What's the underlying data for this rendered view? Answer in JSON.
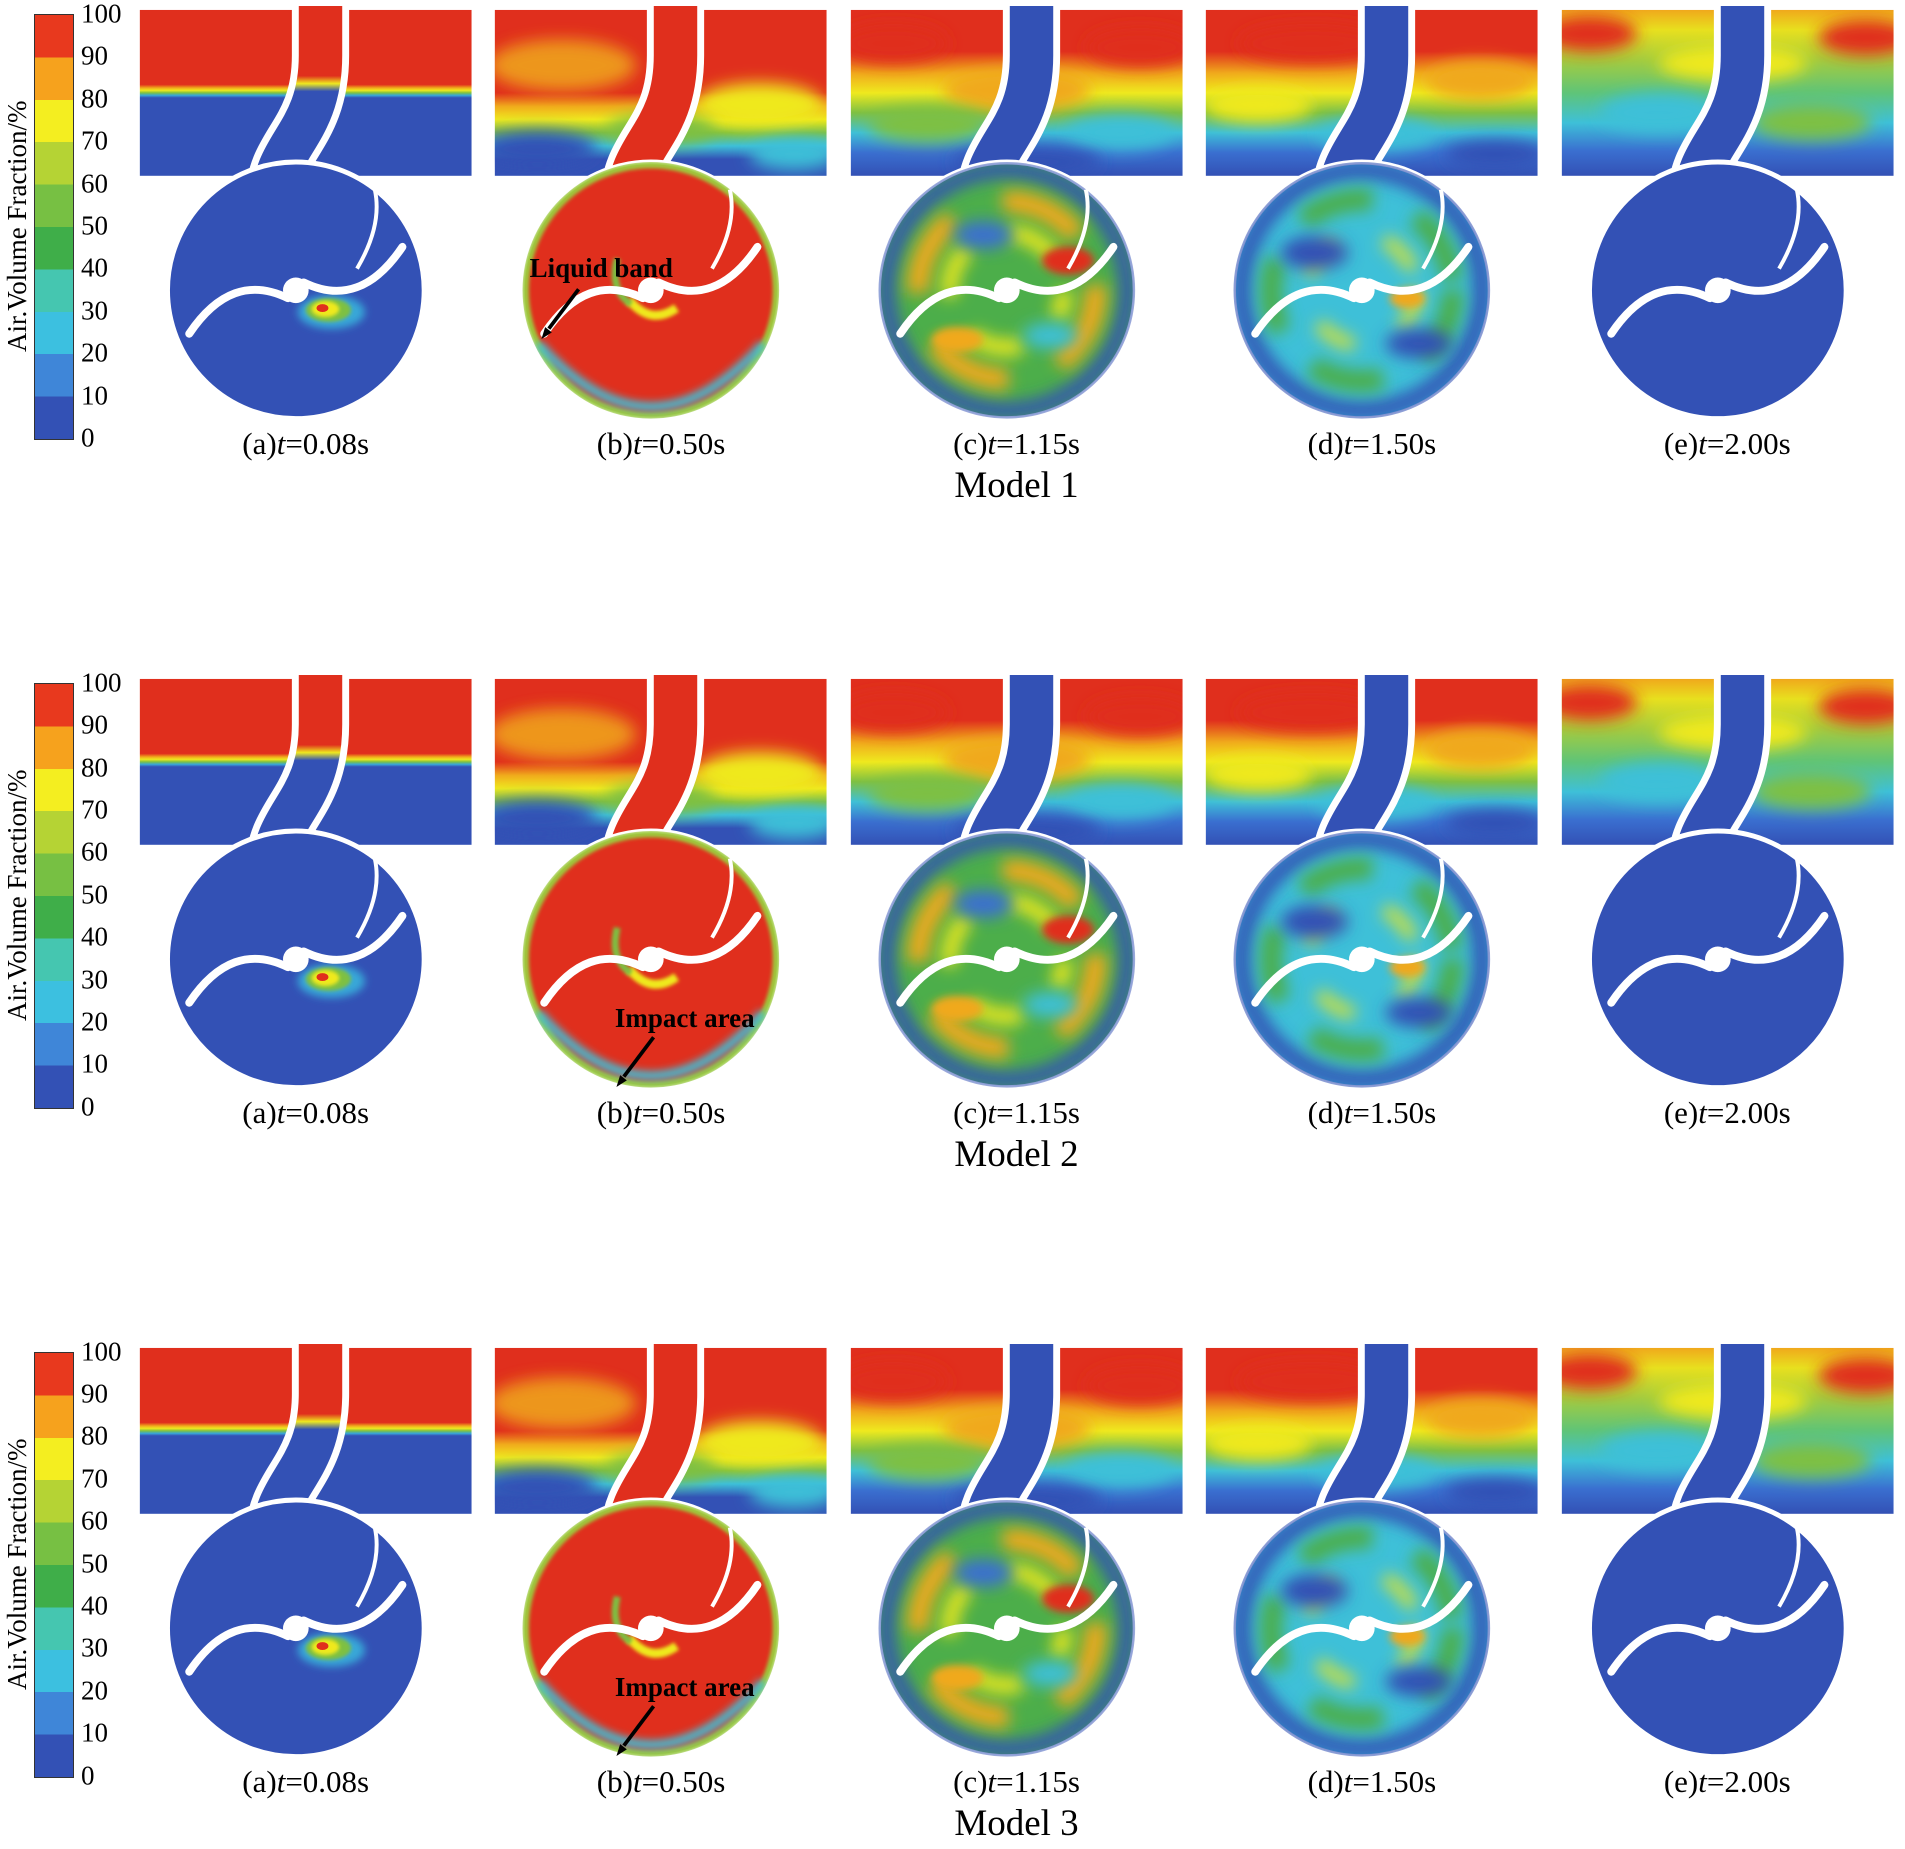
{
  "figure": {
    "time_var": "t",
    "colorbar": {
      "label": "Air.Volume Fraction/%",
      "ticks": [
        "100",
        "90",
        "80",
        "70",
        "60",
        "50",
        "40",
        "30",
        "20",
        "10",
        "0"
      ],
      "colors_bottom_to_top": [
        "#3351b5",
        "#3f86d8",
        "#3cc0e0",
        "#45c6b0",
        "#3fae49",
        "#77c043",
        "#b5d334",
        "#f4ee20",
        "#f6a21d",
        "#e8391e"
      ]
    },
    "contour_colors": {
      "air": "#e8391e",
      "water": "#3351b5"
    },
    "rows": [
      {
        "model": "Model 1",
        "panels": [
          {
            "label": "(a)",
            "time": "=0.08s"
          },
          {
            "label": "(b)",
            "time": "=0.50s",
            "annotation": "Liquid band"
          },
          {
            "label": "(c)",
            "time": "=1.15s"
          },
          {
            "label": "(d)",
            "time": "=1.50s"
          },
          {
            "label": "(e)",
            "time": "=2.00s"
          }
        ]
      },
      {
        "model": "Model 2",
        "panels": [
          {
            "label": "(a)",
            "time": "=0.08s"
          },
          {
            "label": "(b)",
            "time": "=0.50s",
            "annotation": "Impact area"
          },
          {
            "label": "(c)",
            "time": "=1.15s"
          },
          {
            "label": "(d)",
            "time": "=1.50s"
          },
          {
            "label": "(e)",
            "time": "=2.00s"
          }
        ]
      },
      {
        "model": "Model 3",
        "panels": [
          {
            "label": "(a)",
            "time": "=0.08s"
          },
          {
            "label": "(b)",
            "time": "=0.50s",
            "annotation": "Impact area"
          },
          {
            "label": "(c)",
            "time": "=1.15s"
          },
          {
            "label": "(d)",
            "time": "=1.50s"
          },
          {
            "label": "(e)",
            "time": "=2.00s"
          }
        ]
      }
    ]
  }
}
